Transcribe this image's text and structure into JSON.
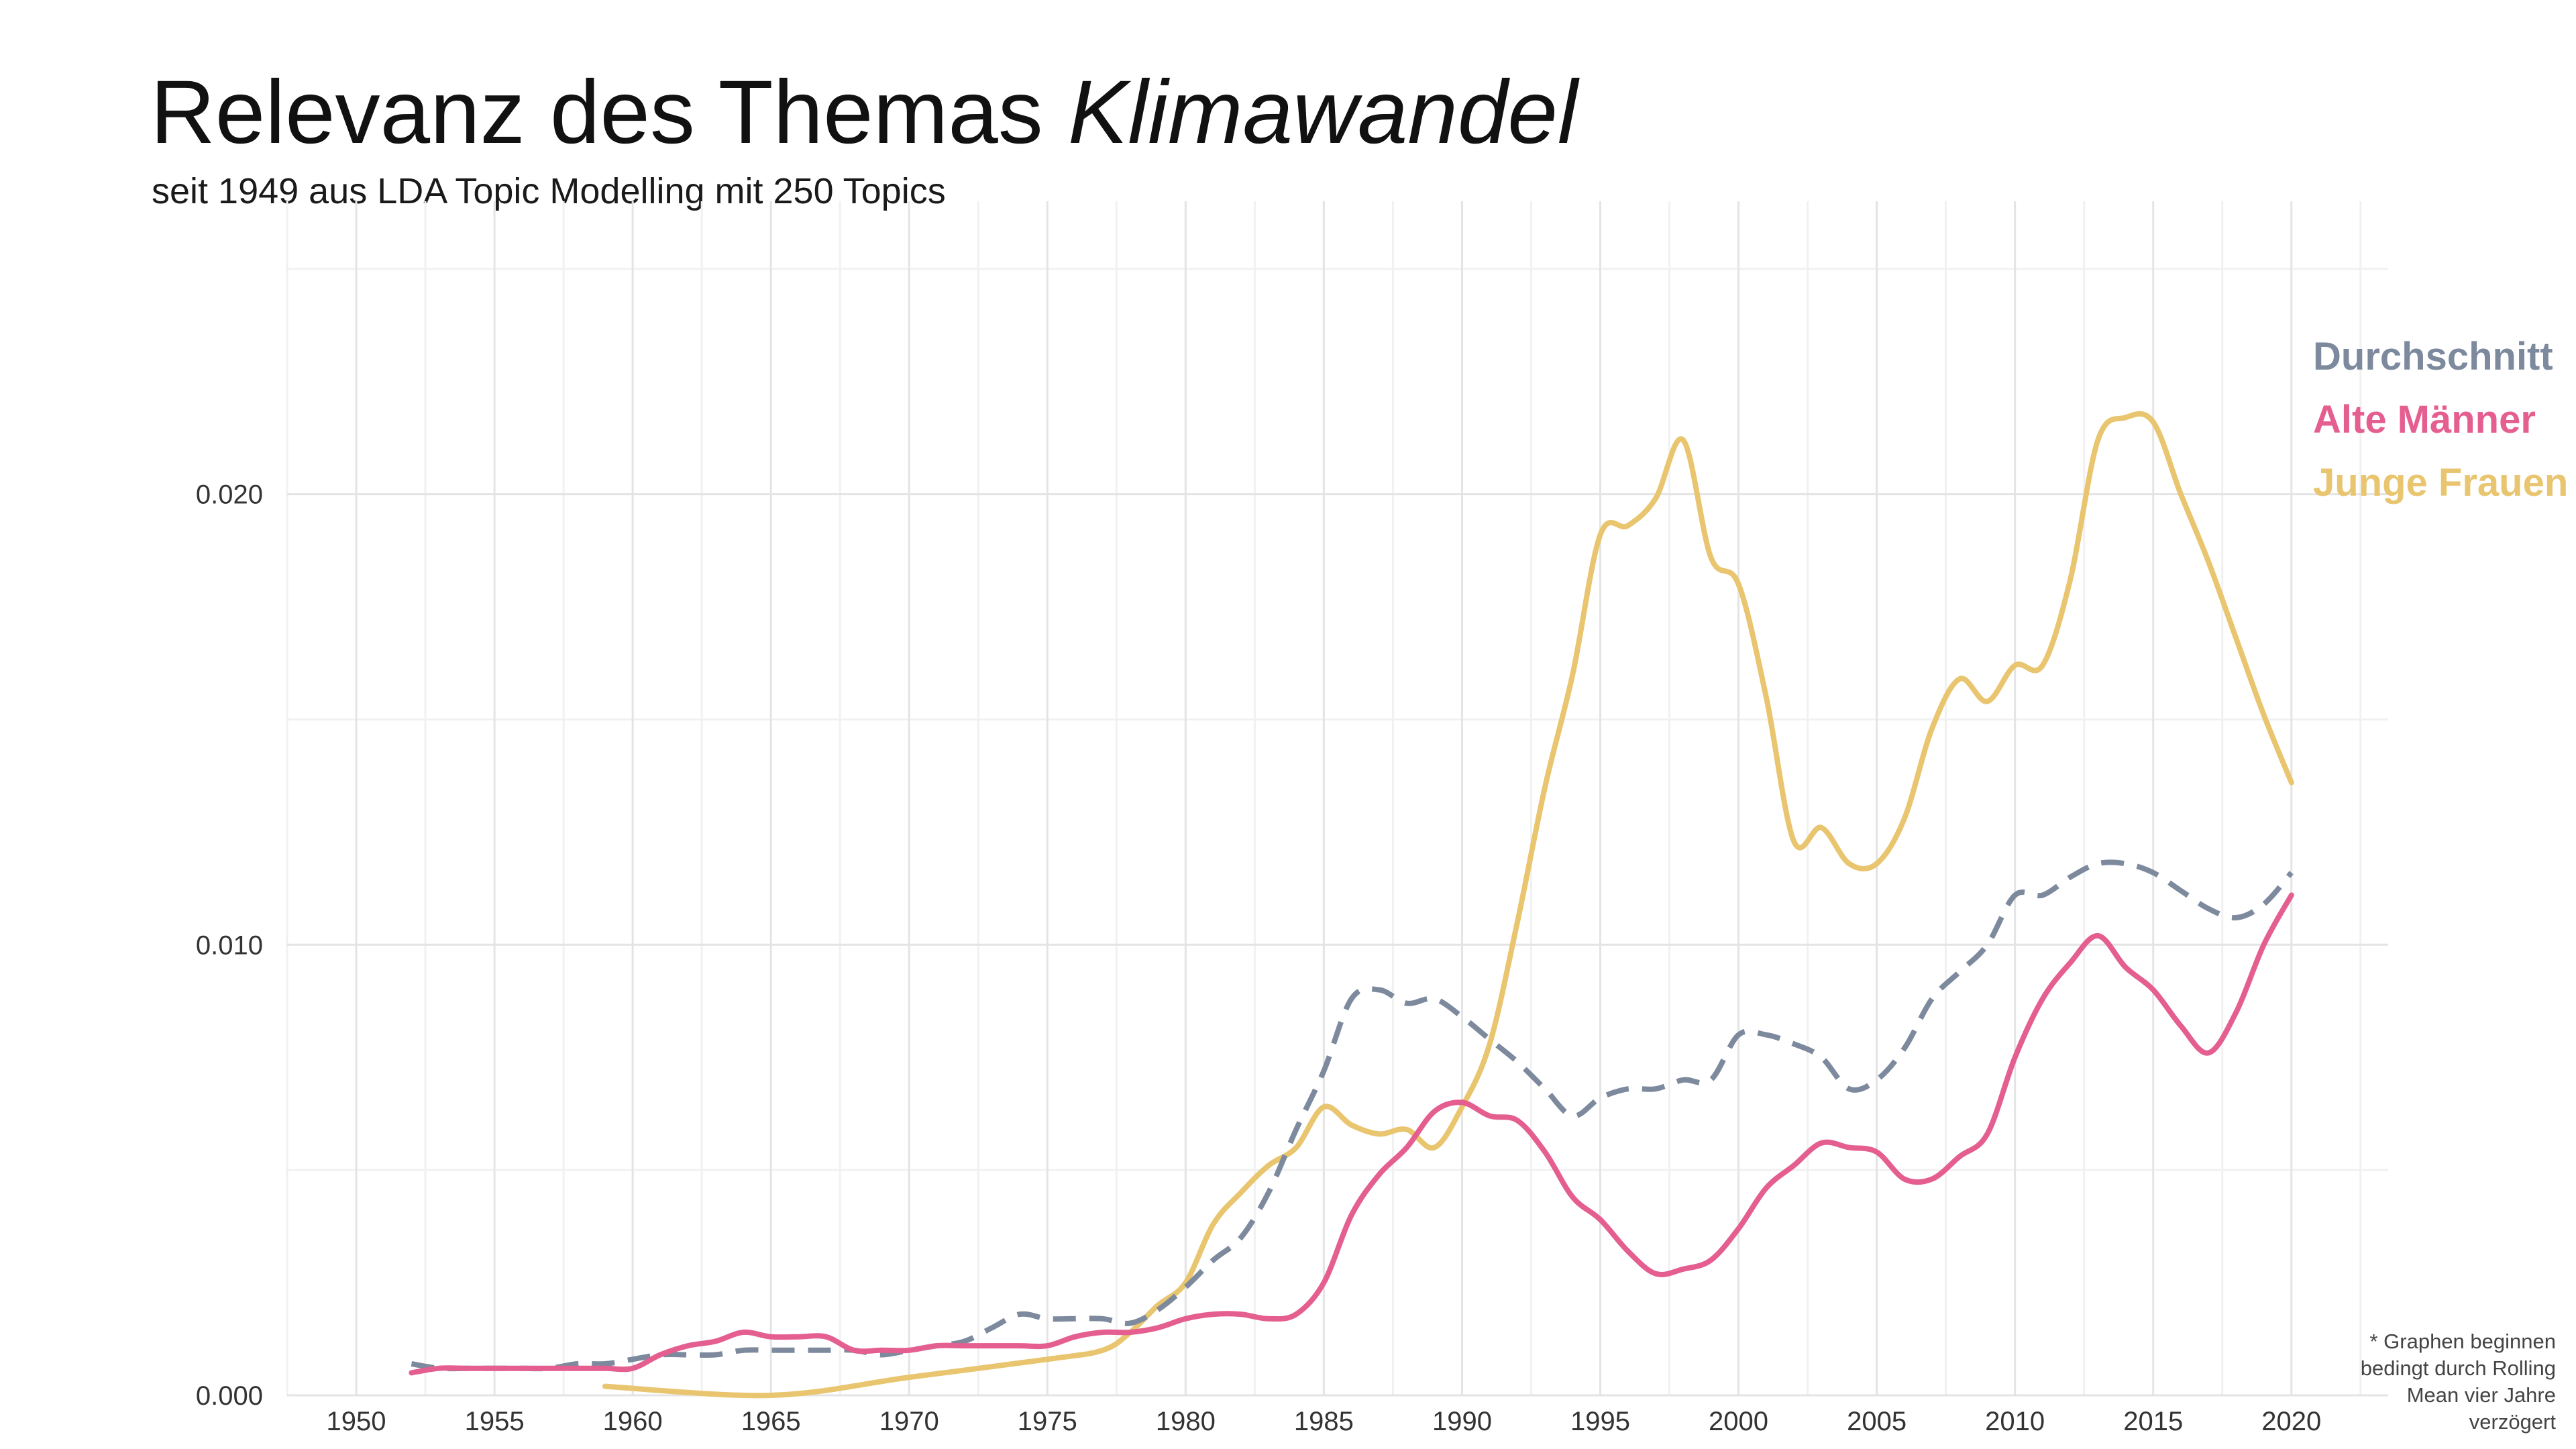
{
  "title": {
    "main": "Relevanz des Themas ",
    "emphasis": "Klimawandel"
  },
  "subtitle": "seit 1949 aus LDA Topic Modelling mit 250 Topics",
  "legend": [
    {
      "label": "Durchschnitt",
      "color": "#7D8A9E"
    },
    {
      "label": "Alte Männer",
      "color": "#E45E8F"
    },
    {
      "label": "Junge Frauen",
      "color": "#E8C56E"
    }
  ],
  "footnote": "* Graphen beginnen bedingt durch Rolling Mean vier Jahre verzögert",
  "chart_data": {
    "type": "line",
    "title": "Relevanz des Themas Klimawandel",
    "subtitle": "seit 1949 aus LDA Topic Modelling mit 250 Topics",
    "xlabel": "",
    "ylabel": "",
    "xlim": [
      1947.5,
      2023.5
    ],
    "ylim": [
      0.0,
      0.0265
    ],
    "x_ticks": [
      1950,
      1955,
      1960,
      1965,
      1970,
      1975,
      1980,
      1985,
      1990,
      1995,
      2000,
      2005,
      2010,
      2015,
      2020
    ],
    "y_ticks": [
      0.0,
      0.01,
      0.02
    ],
    "y_tick_labels": [
      "0.000",
      "0.010",
      "0.020"
    ],
    "grid": true,
    "legend_position": "top-right",
    "series": [
      {
        "name": "Durchschnitt",
        "color": "#7D8A9E",
        "dash": "dashed",
        "x": [
          1952,
          1953,
          1954,
          1955,
          1956,
          1957,
          1958,
          1959,
          1960,
          1961,
          1962,
          1963,
          1964,
          1965,
          1966,
          1967,
          1968,
          1969,
          1970,
          1971,
          1972,
          1973,
          1974,
          1975,
          1976,
          1977,
          1978,
          1979,
          1980,
          1981,
          1982,
          1983,
          1984,
          1985,
          1986,
          1987,
          1988,
          1989,
          1990,
          1991,
          1992,
          1993,
          1994,
          1995,
          1996,
          1997,
          1998,
          1999,
          2000,
          2001,
          2002,
          2003,
          2004,
          2005,
          2006,
          2007,
          2008,
          2009,
          2010,
          2011,
          2012,
          2013,
          2014,
          2015,
          2016,
          2017,
          2018,
          2019,
          2020
        ],
        "y": [
          0.0007,
          0.0006,
          0.0006,
          0.0006,
          0.0006,
          0.0006,
          0.0007,
          0.0007,
          0.0008,
          0.0009,
          0.0009,
          0.0009,
          0.001,
          0.001,
          0.001,
          0.001,
          0.001,
          0.0009,
          0.001,
          0.0011,
          0.0012,
          0.0015,
          0.0018,
          0.0017,
          0.0017,
          0.0017,
          0.0016,
          0.0019,
          0.0024,
          0.003,
          0.0035,
          0.0045,
          0.0059,
          0.0072,
          0.0088,
          0.009,
          0.0087,
          0.0088,
          0.0084,
          0.0079,
          0.0074,
          0.0068,
          0.0062,
          0.0066,
          0.0068,
          0.0068,
          0.007,
          0.007,
          0.008,
          0.008,
          0.0078,
          0.0075,
          0.0068,
          0.007,
          0.0077,
          0.0088,
          0.0094,
          0.01,
          0.0111,
          0.0111,
          0.0115,
          0.0118,
          0.0118,
          0.0116,
          0.0112,
          0.0108,
          0.0106,
          0.0109,
          0.0116
        ]
      },
      {
        "name": "Alte Männer",
        "color": "#E45E8F",
        "dash": "solid",
        "x": [
          1952,
          1953,
          1954,
          1955,
          1956,
          1957,
          1958,
          1959,
          1960,
          1961,
          1962,
          1963,
          1964,
          1965,
          1966,
          1967,
          1968,
          1969,
          1970,
          1971,
          1972,
          1973,
          1974,
          1975,
          1976,
          1977,
          1978,
          1979,
          1980,
          1981,
          1982,
          1983,
          1984,
          1985,
          1986,
          1987,
          1988,
          1989,
          1990,
          1991,
          1992,
          1993,
          1994,
          1995,
          1996,
          1997,
          1998,
          1999,
          2000,
          2001,
          2002,
          2003,
          2004,
          2005,
          2006,
          2007,
          2008,
          2009,
          2010,
          2011,
          2012,
          2013,
          2014,
          2015,
          2016,
          2017,
          2018,
          2019,
          2020
        ],
        "y": [
          0.0005,
          0.0006,
          0.0006,
          0.0006,
          0.0006,
          0.0006,
          0.0006,
          0.0006,
          0.0006,
          0.0009,
          0.0011,
          0.0012,
          0.0014,
          0.0013,
          0.0013,
          0.0013,
          0.001,
          0.001,
          0.001,
          0.0011,
          0.0011,
          0.0011,
          0.0011,
          0.0011,
          0.0013,
          0.0014,
          0.0014,
          0.0015,
          0.0017,
          0.0018,
          0.0018,
          0.0017,
          0.0018,
          0.0025,
          0.004,
          0.0049,
          0.0055,
          0.0063,
          0.0065,
          0.0062,
          0.0061,
          0.0054,
          0.0044,
          0.0039,
          0.0032,
          0.0027,
          0.0028,
          0.003,
          0.0037,
          0.0046,
          0.0051,
          0.0056,
          0.0055,
          0.0054,
          0.0048,
          0.0048,
          0.0053,
          0.0058,
          0.0075,
          0.0088,
          0.0096,
          0.0102,
          0.0095,
          0.009,
          0.0082,
          0.0076,
          0.0085,
          0.01,
          0.0111
        ]
      },
      {
        "name": "Junge Frauen",
        "color": "#E8C56E",
        "dash": "solid",
        "x": [
          1959,
          1965,
          1970,
          1975,
          1977,
          1978,
          1979,
          1980,
          1981,
          1982,
          1983,
          1984,
          1985,
          1986,
          1987,
          1988,
          1989,
          1990,
          1991,
          1992,
          1993,
          1994,
          1995,
          1996,
          1997,
          1998,
          1999,
          2000,
          2001,
          2002,
          2003,
          2004,
          2005,
          2006,
          2007,
          2008,
          2009,
          2010,
          2011,
          2012,
          2013,
          2014,
          2015,
          2016,
          2017,
          2018,
          2019,
          2020
        ],
        "y": [
          0.0002,
          0.0,
          0.0004,
          0.0008,
          0.001,
          0.0014,
          0.002,
          0.0025,
          0.0038,
          0.0045,
          0.0051,
          0.0055,
          0.0064,
          0.006,
          0.0058,
          0.0059,
          0.0055,
          0.0064,
          0.0078,
          0.0105,
          0.0135,
          0.016,
          0.0191,
          0.0193,
          0.0199,
          0.0212,
          0.0186,
          0.018,
          0.0155,
          0.0123,
          0.0126,
          0.0118,
          0.0118,
          0.0128,
          0.0148,
          0.0159,
          0.0154,
          0.0162,
          0.0162,
          0.0181,
          0.0212,
          0.0217,
          0.0216,
          0.02,
          0.0185,
          0.0168,
          0.0151,
          0.0136
        ]
      }
    ]
  }
}
